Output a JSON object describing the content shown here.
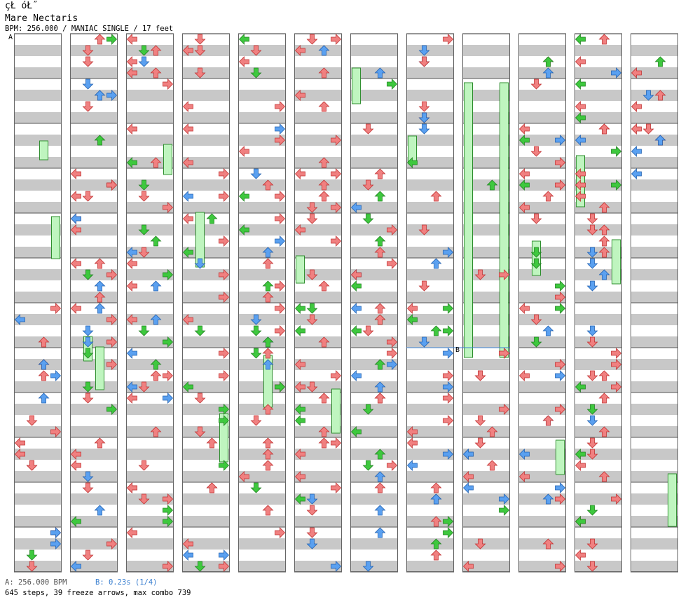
{
  "header": {
    "title_glyphs": "çŁ óŁ˝",
    "song_title": "Mare Nectaris",
    "info": "BPM: 256.000 / MANIAC SINGLE / 17 feet"
  },
  "markers": {
    "a": "A",
    "b": "B"
  },
  "footer": {
    "bpm_a": "A: 256.000 BPM",
    "stop_b": "B: 0.23s (1/4)",
    "stats": "645 steps, 39 freeze arrows, max combo 739"
  },
  "chart_data": {
    "type": "step-chart",
    "bpm": 256,
    "difficulty": "MANIAC SINGLE",
    "feet": 17,
    "steps": 645,
    "freeze_arrows": 39,
    "max_combo": 739,
    "stop_seconds": 0.23,
    "columns": 12,
    "colors": {
      "quarter": "#f08080",
      "eighth": "#5aa0f0",
      "sixteenth": "#3ec83e",
      "other": "#f080f0",
      "freeze": "#bff5bf",
      "freeze_border": "#2f8f2f",
      "stripe": "#c8c8c8"
    }
  }
}
